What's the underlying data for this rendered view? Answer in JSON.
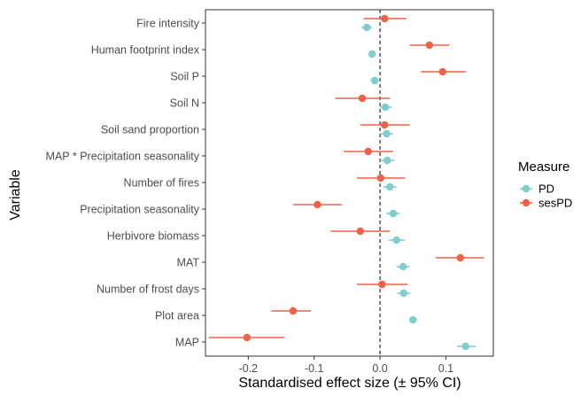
{
  "chart_data": {
    "type": "scatter",
    "title": "",
    "xlabel": "Standardised effect size (± 95% CI)",
    "ylabel": "Variable",
    "xlim": [
      -0.265,
      0.172
    ],
    "x_ticks": [
      {
        "value": -0.2,
        "label": "-0.2"
      },
      {
        "value": -0.1,
        "label": "-0.1"
      },
      {
        "value": 0.0,
        "label": "0.0"
      },
      {
        "value": 0.1,
        "label": "0.1"
      }
    ],
    "reference_line": {
      "x": 0,
      "style": "dashed"
    },
    "grid": false,
    "legend": {
      "title": "Measure",
      "position": "right"
    },
    "categories": [
      "Fire intensity",
      "Human footprint index",
      "Soil P",
      "Soil N",
      "Soil sand proportion",
      "MAP * Precipitation seasonality",
      "Number of fires",
      "Precipitation seasonality",
      "Herbivore biomass",
      "MAT",
      "Number of frost days",
      "Plot area",
      "MAP"
    ],
    "series": [
      {
        "name": "PD",
        "color": "#7fcdcd",
        "values": [
          -0.02,
          -0.012,
          -0.008,
          0.008,
          0.01,
          0.011,
          0.015,
          0.02,
          0.025,
          0.035,
          0.036,
          0.05,
          0.13
        ],
        "ci_low": [
          -0.028,
          -0.018,
          -0.014,
          0.0,
          0.0,
          0.0,
          0.005,
          0.01,
          0.013,
          0.025,
          0.026,
          0.044,
          0.117
        ],
        "ci_high": [
          -0.012,
          -0.006,
          -0.002,
          0.018,
          0.02,
          0.022,
          0.025,
          0.03,
          0.038,
          0.045,
          0.046,
          0.056,
          0.145
        ]
      },
      {
        "name": "sesPD",
        "color": "#ed6249",
        "values": [
          0.007,
          0.075,
          0.095,
          -0.027,
          0.007,
          -0.018,
          0.001,
          -0.095,
          -0.03,
          0.122,
          0.003,
          -0.132,
          -0.202
        ],
        "ci_low": [
          -0.025,
          0.045,
          0.062,
          -0.068,
          -0.03,
          -0.055,
          -0.035,
          -0.132,
          -0.075,
          0.085,
          -0.035,
          -0.165,
          -0.26
        ],
        "ci_high": [
          0.04,
          0.105,
          0.13,
          0.015,
          0.045,
          0.02,
          0.038,
          -0.058,
          0.015,
          0.158,
          0.042,
          -0.105,
          -0.145
        ]
      }
    ]
  }
}
